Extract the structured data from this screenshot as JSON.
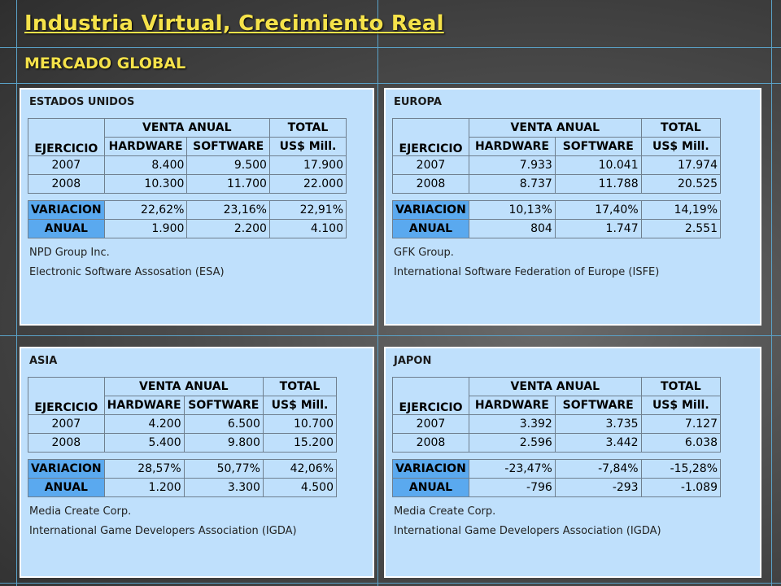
{
  "title": "Industria Virtual, Crecimiento Real",
  "subtitle": "MERCADO GLOBAL",
  "panels": [
    {
      "region": "ESTADOS UNIDOS",
      "header": {
        "ejercicio": "EJERCICIO",
        "venta_anual": "VENTA ANUAL",
        "hardware": "HARDWARE",
        "software": "SOFTWARE",
        "total": "TOTAL",
        "total_unit": "US$ Mill."
      },
      "rows": [
        {
          "year": "2007",
          "hardware": "8.400",
          "software": "9.500",
          "total": "17.900"
        },
        {
          "year": "2008",
          "hardware": "10.300",
          "software": "11.700",
          "total": "22.000"
        }
      ],
      "variacion_label": "VARIACION",
      "anual_label": "ANUAL",
      "variacion": {
        "hardware": "22,62%",
        "software": "23,16%",
        "total": "22,91%"
      },
      "anual": {
        "hardware": "1.900",
        "software": "2.200",
        "total": "4.100"
      },
      "sources": [
        "NPD Group Inc.",
        "Electronic Software Assosation (ESA)"
      ]
    },
    {
      "region": "EUROPA",
      "header": {
        "ejercicio": "EJERCICIO",
        "venta_anual": "VENTA ANUAL",
        "hardware": "HARDWARE",
        "software": "SOFTWARE",
        "total": "TOTAL",
        "total_unit": "US$ Mill."
      },
      "rows": [
        {
          "year": "2007",
          "hardware": "7.933",
          "software": "10.041",
          "total": "17.974"
        },
        {
          "year": "2008",
          "hardware": "8.737",
          "software": "11.788",
          "total": "20.525"
        }
      ],
      "variacion_label": "VARIACION",
      "anual_label": "ANUAL",
      "variacion": {
        "hardware": "10,13%",
        "software": "17,40%",
        "total": "14,19%"
      },
      "anual": {
        "hardware": "804",
        "software": "1.747",
        "total": "2.551"
      },
      "sources": [
        "GFK Group.",
        "International Software Federation of Europe (ISFE)"
      ]
    },
    {
      "region": "ASIA",
      "header": {
        "ejercicio": "EJERCICIO",
        "venta_anual": "VENTA ANUAL",
        "hardware": "HARDWARE",
        "software": "SOFTWARE",
        "total": "TOTAL",
        "total_unit": "US$ Mill."
      },
      "rows": [
        {
          "year": "2007",
          "hardware": "4.200",
          "software": "6.500",
          "total": "10.700"
        },
        {
          "year": "2008",
          "hardware": "5.400",
          "software": "9.800",
          "total": "15.200"
        }
      ],
      "variacion_label": "VARIACION",
      "anual_label": "ANUAL",
      "variacion": {
        "hardware": "28,57%",
        "software": "50,77%",
        "total": "42,06%"
      },
      "anual": {
        "hardware": "1.200",
        "software": "3.300",
        "total": "4.500"
      },
      "sources": [
        "Media Create Corp.",
        "International Game Developers Association (IGDA)"
      ]
    },
    {
      "region": "JAPON",
      "header": {
        "ejercicio": "EJERCICIO",
        "venta_anual": "VENTA ANUAL",
        "hardware": "HARDWARE",
        "software": "SOFTWARE",
        "total": "TOTAL",
        "total_unit": "US$ Mill."
      },
      "rows": [
        {
          "year": "2007",
          "hardware": "3.392",
          "software": "3.735",
          "total": "7.127"
        },
        {
          "year": "2008",
          "hardware": "2.596",
          "software": "3.442",
          "total": "6.038"
        }
      ],
      "variacion_label": "VARIACION",
      "anual_label": "ANUAL",
      "variacion": {
        "hardware": "-23,47%",
        "software": "-7,84%",
        "total": "-15,28%"
      },
      "anual": {
        "hardware": "-796",
        "software": "-293",
        "total": "-1.089"
      },
      "sources": [
        "Media Create Corp.",
        "International Game Developers Association (IGDA)"
      ]
    }
  ]
}
